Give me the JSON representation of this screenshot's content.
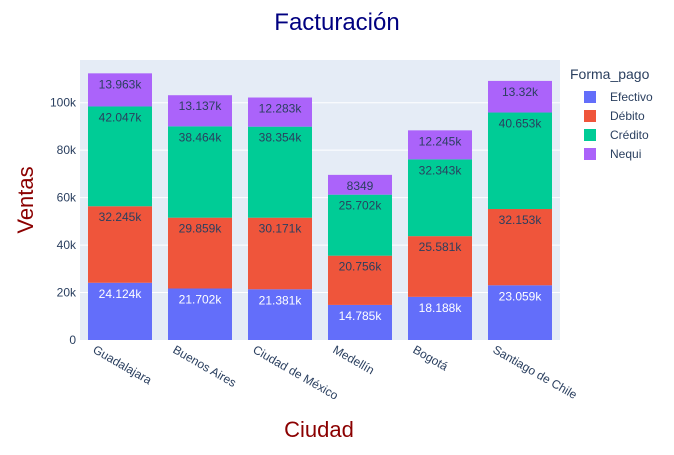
{
  "chart_data": {
    "type": "bar",
    "stacked": true,
    "title": "Facturación",
    "xlabel": "Ciudad",
    "ylabel": "Ventas",
    "ylim": [
      0,
      118000
    ],
    "y_ticks": [
      0,
      20000,
      40000,
      60000,
      80000,
      100000
    ],
    "y_tick_labels": [
      "0",
      "20k",
      "40k",
      "60k",
      "80k",
      "100k"
    ],
    "grid": true,
    "categories": [
      "Guadalajara",
      "Buenos Aires",
      "Ciudad de México",
      "Medellín",
      "Bogotá",
      "Santiago de Chile"
    ],
    "legend": {
      "title": "Forma_pago",
      "placement": "right"
    },
    "series": [
      {
        "name": "Efectivo",
        "color": "#636efa",
        "label_color": "#ffffff",
        "values": [
          24124,
          21702,
          21381,
          14785,
          18188,
          23059
        ],
        "labels": [
          "24.124k",
          "21.702k",
          "21.381k",
          "14.785k",
          "18.188k",
          "23.059k"
        ]
      },
      {
        "name": "Débito",
        "color": "#ef553b",
        "label_color": "#2a3f5f",
        "values": [
          32245,
          29859,
          30171,
          20756,
          25581,
          32153
        ],
        "labels": [
          "32.245k",
          "29.859k",
          "30.171k",
          "20.756k",
          "25.581k",
          "32.153k"
        ]
      },
      {
        "name": "Crédito",
        "color": "#00cc96",
        "label_color": "#2a3f5f",
        "values": [
          42047,
          38464,
          38354,
          25702,
          32343,
          40653
        ],
        "labels": [
          "42.047k",
          "38.464k",
          "38.354k",
          "25.702k",
          "32.343k",
          "40.653k"
        ]
      },
      {
        "name": "Nequi",
        "color": "#ab63fa",
        "label_color": "#2a3f5f",
        "values": [
          13963,
          13137,
          12283,
          8349,
          12245,
          13320
        ],
        "labels": [
          "13.963k",
          "13.137k",
          "12.283k",
          "8349",
          "12.245k",
          "13.32k"
        ]
      }
    ],
    "colors": {
      "plot_bg": "#e5ecf6",
      "grid": "#ffffff",
      "title": "#000080",
      "axis_title": "#8b0000",
      "tick": "#2a3f5f"
    }
  }
}
